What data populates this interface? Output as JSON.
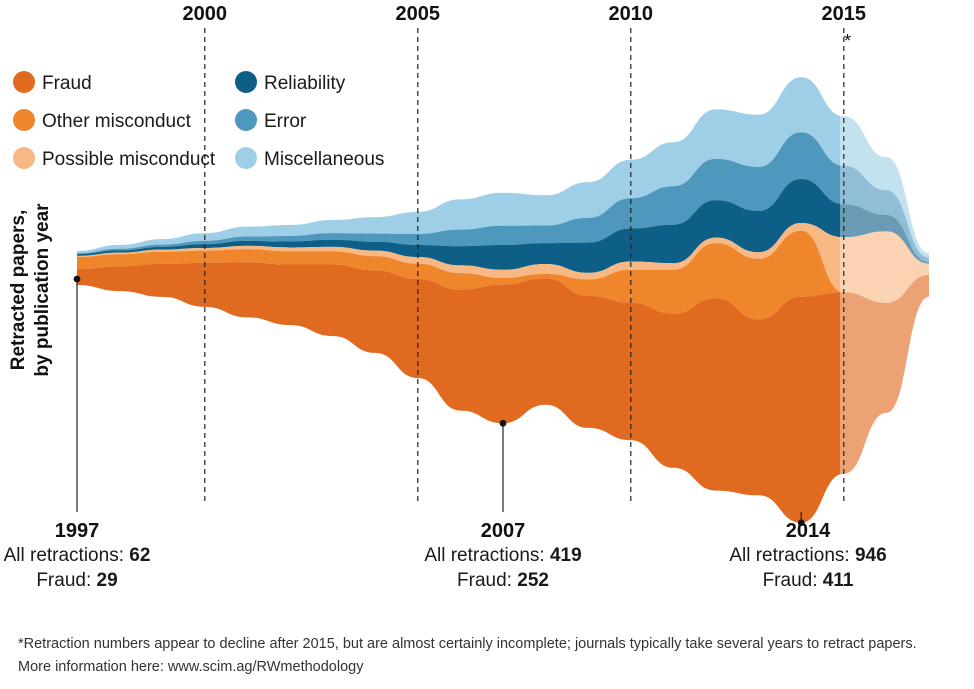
{
  "chart_data": {
    "type": "area",
    "subtype": "streamgraph",
    "ylabel_lines": [
      "Retracted papers,",
      "by publication year"
    ],
    "x": [
      1997,
      1998,
      1999,
      2000,
      2001,
      2002,
      2003,
      2004,
      2005,
      2006,
      2007,
      2008,
      2009,
      2010,
      2011,
      2012,
      2013,
      2014,
      2015,
      2016,
      2017
    ],
    "x_ticks": [
      "2000",
      "2005",
      "2010",
      "2015"
    ],
    "incomplete_after_marker": "*",
    "series": [
      {
        "name": "Miscellaneous",
        "color": "#9fcfe6",
        "values": [
          4,
          7,
          10,
          14,
          18,
          20,
          24,
          30,
          40,
          55,
          60,
          55,
          65,
          70,
          80,
          90,
          95,
          100,
          90,
          60,
          8
        ]
      },
      {
        "name": "Error",
        "color": "#4e97bd",
        "values": [
          2,
          3,
          4,
          6,
          8,
          10,
          12,
          15,
          20,
          30,
          35,
          32,
          45,
          55,
          70,
          75,
          80,
          85,
          70,
          45,
          8
        ]
      },
      {
        "name": "Reliability",
        "color": "#0d5f87",
        "values": [
          3,
          4,
          5,
          7,
          9,
          11,
          13,
          16,
          22,
          35,
          45,
          38,
          55,
          60,
          70,
          68,
          75,
          80,
          60,
          30,
          3
        ]
      },
      {
        "name": "Possible misconduct",
        "color": "#f7b884",
        "values": [
          2,
          3,
          4,
          5,
          6,
          7,
          8,
          10,
          12,
          14,
          15,
          18,
          12,
          15,
          12,
          10,
          12,
          14,
          100,
          130,
          20
        ]
      },
      {
        "name": "Other misconduct",
        "color": "#f0862b",
        "values": [
          22,
          22,
          22,
          22,
          24,
          24,
          24,
          26,
          28,
          30,
          12,
          8,
          30,
          60,
          80,
          100,
          110,
          120,
          0,
          0,
          0
        ]
      },
      {
        "name": "Fraud",
        "color": "#e06a20",
        "values": [
          29,
          45,
          60,
          80,
          100,
          110,
          130,
          150,
          180,
          220,
          252,
          230,
          240,
          250,
          280,
          350,
          320,
          411,
          330,
          200,
          40
        ]
      }
    ],
    "annotations": [
      {
        "year": "1997",
        "all_label": "All retractions: ",
        "all_value": "62",
        "fraud_label": "Fraud: ",
        "fraud_value": "29"
      },
      {
        "year": "2007",
        "all_label": "All retractions: ",
        "all_value": "419",
        "fraud_label": "Fraud: ",
        "fraud_value": "252"
      },
      {
        "year": "2014",
        "all_label": "All retractions: ",
        "all_value": "946",
        "fraud_label": "Fraud: ",
        "fraud_value": "411"
      }
    ],
    "legend": [
      {
        "name": "Fraud",
        "color": "#e06a20"
      },
      {
        "name": "Other misconduct",
        "color": "#f0862b"
      },
      {
        "name": "Possible misconduct",
        "color": "#f7b884"
      },
      {
        "name": "Reliability",
        "color": "#0d5f87"
      },
      {
        "name": "Error",
        "color": "#4e97bd"
      },
      {
        "name": "Miscellaneous",
        "color": "#9fcfe6"
      }
    ],
    "legend_placement": "top-left"
  },
  "footnote": {
    "line1": "*Retraction numbers appear to decline after 2015, but are almost certainly incomplete; journals typically take several years to retract papers.",
    "line2": "More information here: www.scim.ag/RWmethodology"
  }
}
